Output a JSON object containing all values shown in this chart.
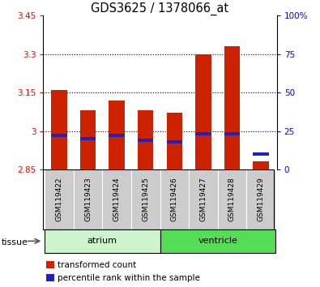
{
  "title": "GDS3625 / 1378066_at",
  "samples": [
    "GSM119422",
    "GSM119423",
    "GSM119424",
    "GSM119425",
    "GSM119426",
    "GSM119427",
    "GSM119428",
    "GSM119429"
  ],
  "transformed_counts": [
    3.16,
    3.08,
    3.12,
    3.08,
    3.07,
    3.3,
    3.33,
    2.88
  ],
  "percentile_ranks": [
    22,
    20,
    22,
    19,
    18,
    23,
    23,
    10
  ],
  "baseline": 2.85,
  "ylim_left": [
    2.85,
    3.45
  ],
  "ylim_right": [
    0,
    100
  ],
  "yticks_left": [
    2.85,
    3.0,
    3.15,
    3.3,
    3.45
  ],
  "ytick_labels_left": [
    "2.85",
    "3",
    "3.15",
    "3.3",
    "3.45"
  ],
  "yticks_right": [
    0,
    25,
    50,
    75,
    100
  ],
  "ytick_labels_right": [
    "0",
    "25",
    "50",
    "75",
    "100%"
  ],
  "grid_lines": [
    3.0,
    3.15,
    3.3
  ],
  "tissue_groups": [
    {
      "label": "atrium",
      "indices": [
        0,
        1,
        2,
        3
      ],
      "color": "#ccf5cc"
    },
    {
      "label": "ventricle",
      "indices": [
        4,
        5,
        6,
        7
      ],
      "color": "#55dd55"
    }
  ],
  "bar_color_red": "#cc2200",
  "bar_color_blue": "#2222bb",
  "bar_width": 0.55,
  "sample_bg_color": "#cccccc",
  "legend_red_label": "transformed count",
  "legend_blue_label": "percentile rank within the sample",
  "tissue_label": "tissue",
  "title_fontsize": 10.5,
  "tick_fontsize": 7.5,
  "label_fontsize": 8,
  "legend_fontsize": 7.5
}
